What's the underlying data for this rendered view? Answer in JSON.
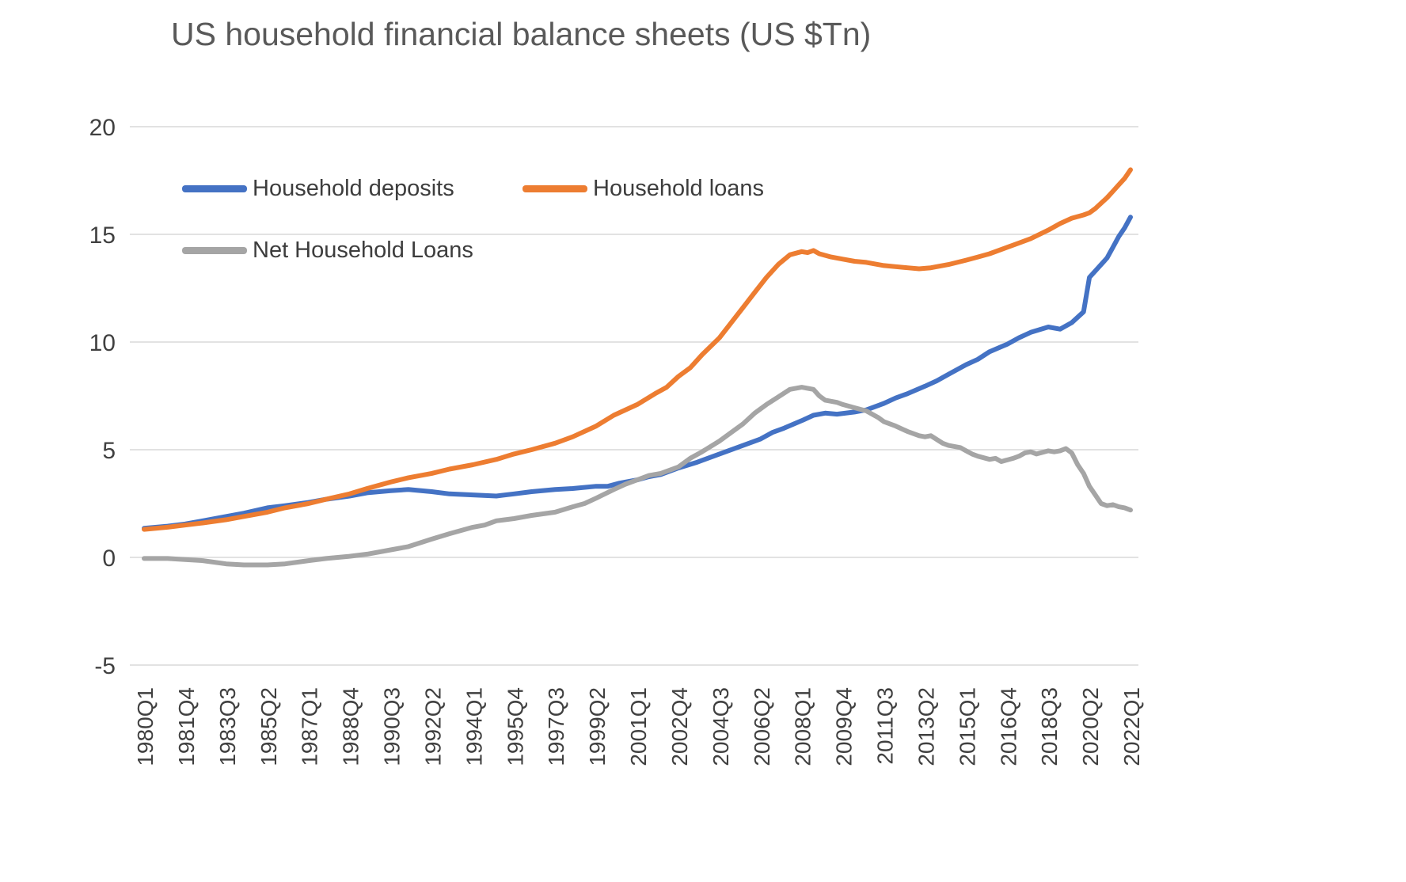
{
  "chart_data": {
    "type": "line",
    "title": "US household financial balance sheets (US $Tn)",
    "ylabel": "",
    "xlabel": "",
    "ylim": [
      -5,
      20
    ],
    "y_ticks": [
      20,
      15,
      10,
      5,
      0,
      -5
    ],
    "grid": "horizontal",
    "legend_position": "inside-top-left",
    "gridline_color": "#d9d9d9",
    "x_quarters_per_tick": 7,
    "x_index_range": [
      0,
      168
    ],
    "x_tick_labels": [
      "1980Q1",
      "1981Q4",
      "1983Q3",
      "1985Q2",
      "1987Q1",
      "1988Q4",
      "1990Q3",
      "1992Q2",
      "1994Q1",
      "1995Q4",
      "1997Q3",
      "1999Q2",
      "2001Q1",
      "2002Q4",
      "2004Q3",
      "2006Q2",
      "2008Q1",
      "2009Q4",
      "2011Q3",
      "2013Q2",
      "2015Q1",
      "2016Q4",
      "2018Q3",
      "2020Q2",
      "2022Q1"
    ],
    "series": [
      {
        "name": "Household deposits",
        "color": "#4472C4",
        "points": [
          [
            0,
            1.35
          ],
          [
            4,
            1.45
          ],
          [
            7,
            1.55
          ],
          [
            10,
            1.7
          ],
          [
            14,
            1.9
          ],
          [
            17,
            2.05
          ],
          [
            21,
            2.3
          ],
          [
            24,
            2.4
          ],
          [
            28,
            2.55
          ],
          [
            31,
            2.7
          ],
          [
            35,
            2.85
          ],
          [
            38,
            3.0
          ],
          [
            42,
            3.1
          ],
          [
            45,
            3.15
          ],
          [
            49,
            3.05
          ],
          [
            52,
            2.95
          ],
          [
            56,
            2.9
          ],
          [
            60,
            2.85
          ],
          [
            63,
            2.95
          ],
          [
            66,
            3.05
          ],
          [
            70,
            3.15
          ],
          [
            73,
            3.2
          ],
          [
            77,
            3.3
          ],
          [
            79,
            3.3
          ],
          [
            81,
            3.45
          ],
          [
            84,
            3.6
          ],
          [
            86,
            3.75
          ],
          [
            88,
            3.85
          ],
          [
            91,
            4.15
          ],
          [
            94,
            4.4
          ],
          [
            98,
            4.8
          ],
          [
            101,
            5.1
          ],
          [
            105,
            5.5
          ],
          [
            107,
            5.8
          ],
          [
            109,
            6.0
          ],
          [
            112,
            6.35
          ],
          [
            114,
            6.6
          ],
          [
            116,
            6.7
          ],
          [
            118,
            6.65
          ],
          [
            121,
            6.75
          ],
          [
            123,
            6.85
          ],
          [
            126,
            7.15
          ],
          [
            128,
            7.4
          ],
          [
            130,
            7.6
          ],
          [
            133,
            7.95
          ],
          [
            135,
            8.2
          ],
          [
            137,
            8.5
          ],
          [
            140,
            8.95
          ],
          [
            142,
            9.2
          ],
          [
            144,
            9.55
          ],
          [
            147,
            9.9
          ],
          [
            149,
            10.2
          ],
          [
            151,
            10.45
          ],
          [
            154,
            10.7
          ],
          [
            156,
            10.6
          ],
          [
            158,
            10.9
          ],
          [
            160,
            11.4
          ],
          [
            161,
            13.0
          ],
          [
            162,
            13.3
          ],
          [
            164,
            13.9
          ],
          [
            165,
            14.4
          ],
          [
            166,
            14.9
          ],
          [
            167,
            15.3
          ],
          [
            168,
            15.8
          ]
        ]
      },
      {
        "name": "Household loans",
        "color": "#ED7D31",
        "points": [
          [
            0,
            1.3
          ],
          [
            4,
            1.4
          ],
          [
            7,
            1.5
          ],
          [
            10,
            1.6
          ],
          [
            14,
            1.75
          ],
          [
            17,
            1.9
          ],
          [
            21,
            2.1
          ],
          [
            24,
            2.3
          ],
          [
            28,
            2.5
          ],
          [
            31,
            2.7
          ],
          [
            35,
            2.95
          ],
          [
            38,
            3.2
          ],
          [
            42,
            3.5
          ],
          [
            45,
            3.7
          ],
          [
            49,
            3.9
          ],
          [
            52,
            4.1
          ],
          [
            56,
            4.3
          ],
          [
            60,
            4.55
          ],
          [
            63,
            4.8
          ],
          [
            66,
            5.0
          ],
          [
            70,
            5.3
          ],
          [
            73,
            5.6
          ],
          [
            77,
            6.1
          ],
          [
            80,
            6.6
          ],
          [
            84,
            7.1
          ],
          [
            87,
            7.6
          ],
          [
            89,
            7.9
          ],
          [
            91,
            8.4
          ],
          [
            93,
            8.8
          ],
          [
            95,
            9.4
          ],
          [
            98,
            10.2
          ],
          [
            100,
            10.9
          ],
          [
            102,
            11.6
          ],
          [
            104,
            12.3
          ],
          [
            106,
            13.0
          ],
          [
            108,
            13.6
          ],
          [
            110,
            14.05
          ],
          [
            112,
            14.2
          ],
          [
            113,
            14.15
          ],
          [
            114,
            14.25
          ],
          [
            115,
            14.1
          ],
          [
            117,
            13.95
          ],
          [
            119,
            13.85
          ],
          [
            121,
            13.75
          ],
          [
            123,
            13.7
          ],
          [
            126,
            13.55
          ],
          [
            128,
            13.5
          ],
          [
            130,
            13.45
          ],
          [
            132,
            13.4
          ],
          [
            134,
            13.45
          ],
          [
            137,
            13.6
          ],
          [
            140,
            13.8
          ],
          [
            142,
            13.95
          ],
          [
            144,
            14.1
          ],
          [
            147,
            14.4
          ],
          [
            149,
            14.6
          ],
          [
            151,
            14.8
          ],
          [
            154,
            15.2
          ],
          [
            156,
            15.5
          ],
          [
            158,
            15.75
          ],
          [
            160,
            15.9
          ],
          [
            161,
            16.0
          ],
          [
            162,
            16.2
          ],
          [
            164,
            16.7
          ],
          [
            165,
            17.0
          ],
          [
            166,
            17.3
          ],
          [
            167,
            17.6
          ],
          [
            168,
            18.0
          ]
        ]
      },
      {
        "name": "Net Household Loans",
        "color": "#A5A5A5",
        "points": [
          [
            0,
            -0.05
          ],
          [
            4,
            -0.05
          ],
          [
            7,
            -0.1
          ],
          [
            10,
            -0.15
          ],
          [
            14,
            -0.3
          ],
          [
            17,
            -0.35
          ],
          [
            21,
            -0.35
          ],
          [
            24,
            -0.3
          ],
          [
            28,
            -0.15
          ],
          [
            31,
            -0.05
          ],
          [
            35,
            0.05
          ],
          [
            38,
            0.15
          ],
          [
            42,
            0.35
          ],
          [
            45,
            0.5
          ],
          [
            49,
            0.85
          ],
          [
            52,
            1.1
          ],
          [
            56,
            1.4
          ],
          [
            58,
            1.5
          ],
          [
            60,
            1.7
          ],
          [
            63,
            1.8
          ],
          [
            66,
            1.95
          ],
          [
            70,
            2.1
          ],
          [
            73,
            2.35
          ],
          [
            75,
            2.5
          ],
          [
            77,
            2.75
          ],
          [
            80,
            3.15
          ],
          [
            82,
            3.4
          ],
          [
            84,
            3.6
          ],
          [
            86,
            3.8
          ],
          [
            88,
            3.9
          ],
          [
            91,
            4.2
          ],
          [
            93,
            4.6
          ],
          [
            95,
            4.9
          ],
          [
            98,
            5.4
          ],
          [
            100,
            5.8
          ],
          [
            102,
            6.2
          ],
          [
            104,
            6.7
          ],
          [
            106,
            7.1
          ],
          [
            108,
            7.45
          ],
          [
            110,
            7.8
          ],
          [
            112,
            7.9
          ],
          [
            114,
            7.8
          ],
          [
            115,
            7.5
          ],
          [
            116,
            7.3
          ],
          [
            118,
            7.2
          ],
          [
            119,
            7.1
          ],
          [
            121,
            6.95
          ],
          [
            123,
            6.8
          ],
          [
            125,
            6.5
          ],
          [
            126,
            6.3
          ],
          [
            128,
            6.1
          ],
          [
            130,
            5.85
          ],
          [
            132,
            5.65
          ],
          [
            133,
            5.6
          ],
          [
            134,
            5.65
          ],
          [
            136,
            5.3
          ],
          [
            137,
            5.2
          ],
          [
            139,
            5.1
          ],
          [
            140,
            4.95
          ],
          [
            141,
            4.8
          ],
          [
            142,
            4.7
          ],
          [
            144,
            4.55
          ],
          [
            145,
            4.6
          ],
          [
            146,
            4.45
          ],
          [
            148,
            4.6
          ],
          [
            149,
            4.7
          ],
          [
            150,
            4.85
          ],
          [
            151,
            4.9
          ],
          [
            152,
            4.8
          ],
          [
            154,
            4.95
          ],
          [
            155,
            4.9
          ],
          [
            156,
            4.95
          ],
          [
            157,
            5.05
          ],
          [
            158,
            4.85
          ],
          [
            159,
            4.3
          ],
          [
            160,
            3.9
          ],
          [
            161,
            3.3
          ],
          [
            162,
            2.9
          ],
          [
            163,
            2.5
          ],
          [
            164,
            2.4
          ],
          [
            165,
            2.45
          ],
          [
            166,
            2.35
          ],
          [
            167,
            2.3
          ],
          [
            168,
            2.2
          ]
        ]
      }
    ]
  }
}
